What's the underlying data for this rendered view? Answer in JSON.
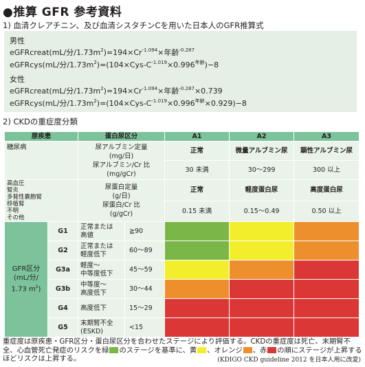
{
  "title": "●推算 GFR 参考資料",
  "section1": "1) 血清クレアチニン、及び血清シスタチンCを用いた日本人のGFR推算式",
  "formulas": {
    "male_label": "男性",
    "male_creat_a": "eGFRcreat(mL/分/1.73m",
    "male_creat_b": ")=194×Cr",
    "male_creat_c": "×年齢",
    "male_cys_a": "eGFRcys(mL/分/1.73m",
    "male_cys_b": ")=(104×Cys-C",
    "male_cys_c": "×0.996",
    "male_cys_d": ")−8",
    "female_label": "女性",
    "female_creat_a": "eGFRcreat(mL/分/1.73m",
    "female_creat_b": ")=194×Cr",
    "female_creat_c": "×年齢",
    "female_creat_d": "×0.739",
    "female_cys_a": "eGFRcys(mL/分/1.73m",
    "female_cys_b": ")=(104×Cys-C",
    "female_cys_c": "×0.996",
    "female_cys_d": "×0.929)−8",
    "sq": "2",
    "exp_cr": "-1.094",
    "exp_age": "-0.287",
    "exp_cys": "-1.019",
    "exp_nen": "年齢"
  },
  "section2": "2) CKDの重症度分類",
  "table": {
    "h_disease": "原疾患",
    "h_protein": "蛋白尿区分",
    "h_a1": "A1",
    "h_a2": "A2",
    "h_a3": "A3",
    "diabetes_label": "糖尿病",
    "diabetes_measure_1": "尿アルブミン定量",
    "diabetes_measure_2": "(mg/日)",
    "diabetes_measure_3": "尿アルブミン/Cr 比",
    "diabetes_measure_4": "(mg/gCr)",
    "diabetes_a1": "正常",
    "diabetes_a2": "微量アルブミン尿",
    "diabetes_a3": "顕性アルブミン尿",
    "diabetes_a1_val": "30 未満",
    "diabetes_a2_val": "30〜299",
    "diabetes_a3_val": "300 以上",
    "other_label_1": "高血圧",
    "other_label_2": "腎炎",
    "other_label_3": "多発性嚢胞腎",
    "other_label_4": "移植腎",
    "other_label_5": "不明",
    "other_label_6": "その他",
    "other_measure_1": "尿蛋白定量",
    "other_measure_2": "(g/日)",
    "other_measure_3": "尿蛋白/Cr 比",
    "other_measure_4": "(g/gCr)",
    "other_a1": "正常",
    "other_a2": "軽度蛋白尿",
    "other_a3": "高度蛋白尿",
    "other_a1_val": "0.15 未満",
    "other_a2_val": "0.15〜0.49",
    "other_a3_val": "0.50 以上",
    "gfr_label_1": "GFR区分",
    "gfr_label_2": "(mL/分/",
    "gfr_label_3": "1.73 m",
    "gfr_label_4": ")",
    "rows": [
      {
        "code": "G1",
        "desc1": "正常または",
        "desc2": "高値",
        "range": "≧90"
      },
      {
        "code": "G2",
        "desc1": "正常または",
        "desc2": "軽度低下",
        "range": "60〜89"
      },
      {
        "code": "G3a",
        "desc1": "軽度〜",
        "desc2": "中等度低下",
        "range": "45〜59"
      },
      {
        "code": "G3b",
        "desc1": "中等度〜",
        "desc2": "高度低下",
        "range": "30〜44"
      },
      {
        "code": "G4",
        "desc1": "高度低下",
        "desc2": "",
        "range": "15〜29"
      },
      {
        "code": "G5",
        "desc1": "末期腎不全",
        "desc2": "(ESKD)",
        "range": "<15"
      }
    ],
    "risk_colors": {
      "green": "#7ab648",
      "yellow": "#f3ee2c",
      "orange": "#ec8f2c",
      "red": "#dc3737"
    }
  },
  "note": {
    "p1": "重症度は原疾患・GFR区分・蛋白尿区分を合わせたステージにより評価する。CKDの重症度は死亡、末期腎不全、心血管死亡発症のリスクを緑",
    "p2": "のステージを基準に、黄",
    "p3": "、オレンジ",
    "p4": "、赤",
    "p5": "の順にステージが上昇するほどリスクは上昇する。",
    "source": "(KDIGO CKD guideline 2012 を日本人用に改変)"
  }
}
